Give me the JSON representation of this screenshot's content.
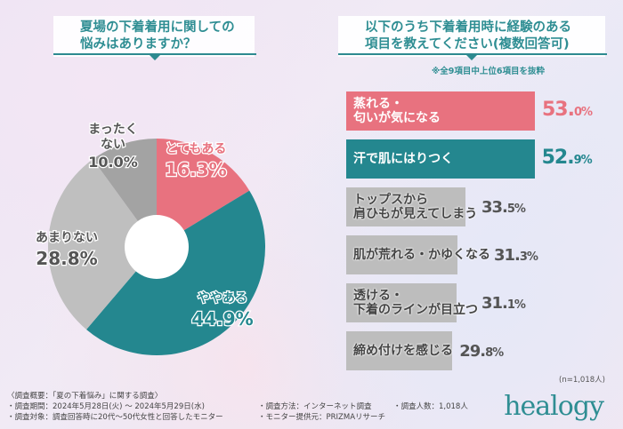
{
  "left": {
    "title_line1": "夏場の下着着用に関しての",
    "title_line2": "悩みはありますか？"
  },
  "right": {
    "title_line1": "以下のうち下着着用時に経験のある",
    "title_line2": "項目を教えてください(複数回答可)",
    "note": "※全9項目中上位6項目を抜粋",
    "sample": "(n=1,018人)"
  },
  "chart_data": [
    {
      "type": "pie",
      "donut": true,
      "categories": [
        "とてもある",
        "ややある",
        "あまりない",
        "まったくない"
      ],
      "values": [
        16.3,
        44.9,
        28.8,
        10.0
      ],
      "labels": [
        "16.3%",
        "44.9%",
        "28.8%",
        "10.0%"
      ],
      "colors": [
        "#e8727f",
        "#24878f",
        "#bfbfbf",
        "#a3a3a3"
      ]
    },
    {
      "type": "bar",
      "orientation": "horizontal",
      "categories": [
        "蒸れる・匂いが気になる",
        "汗で肌にはりつく",
        "トップスから肩ひもが見えてしまう",
        "肌が荒れる・かゆくなる",
        "透ける・下着のラインが目立つ",
        "締め付けを感じる"
      ],
      "category_lines": [
        [
          "蒸れる・",
          "匂いが気になる"
        ],
        [
          "汗で肌にはりつく"
        ],
        [
          "トップスから",
          "肩ひもが見えてしまう"
        ],
        [
          "肌が荒れる・かゆくなる"
        ],
        [
          "透ける・",
          "下着のラインが目立つ"
        ],
        [
          "締め付けを感じる"
        ]
      ],
      "values": [
        53.0,
        52.9,
        33.5,
        31.3,
        31.1,
        29.8
      ],
      "value_int": [
        "53.",
        "52.",
        "33.",
        "31.",
        "31.",
        "29."
      ],
      "value_dec": [
        "0%",
        "9%",
        "5%",
        "3%",
        "1%",
        "8%"
      ],
      "colors": [
        "#e8727f",
        "#24878f",
        "#bdbdbd",
        "#bdbdbd",
        "#bdbdbd",
        "#bdbdbd"
      ],
      "value_colors": [
        "#e8727f",
        "#24878f",
        "#555555",
        "#555555",
        "#555555",
        "#555555"
      ]
    }
  ],
  "footer": {
    "line1": "〈調査概要：「夏の下着悩み」に関する調査〉",
    "period": "・調査期間：2024年5月28日(火) ～ 2024年5月29日(水)",
    "target": "・調査対象：調査回答時に20代～50代女性と回答したモニター",
    "method": "・調査方法：インターネット調査",
    "provider": "・モニター提供元：PRIZMAリサーチ",
    "count": "・調査人数：1,018人"
  },
  "brand": {
    "logo": "healogy"
  }
}
